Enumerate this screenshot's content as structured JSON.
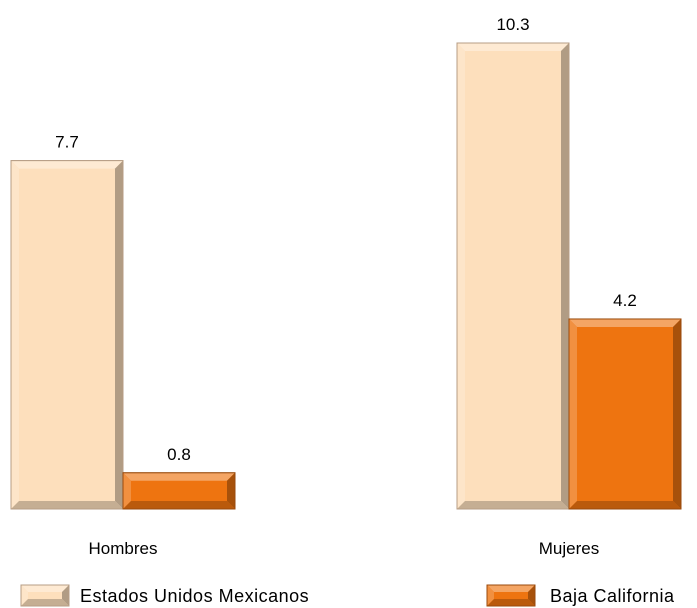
{
  "chart_data": {
    "type": "bar",
    "categories": [
      "Hombres",
      "Mujeres"
    ],
    "series": [
      {
        "name": "Estados Unidos Mexicanos",
        "values": [
          7.7,
          10.3
        ],
        "labels": [
          "7.7",
          "10.3"
        ],
        "color": "#FDDFBC",
        "edge": "#B79D84"
      },
      {
        "name": "Baja California",
        "values": [
          0.8,
          4.2
        ],
        "labels": [
          "0.8",
          "4.2"
        ],
        "color": "#EE7410",
        "edge": "#9A4A0C"
      }
    ],
    "ylim": [
      0,
      10.3
    ],
    "grid": false,
    "legend": "bottom",
    "title": "",
    "xlabel": "",
    "ylabel": ""
  }
}
